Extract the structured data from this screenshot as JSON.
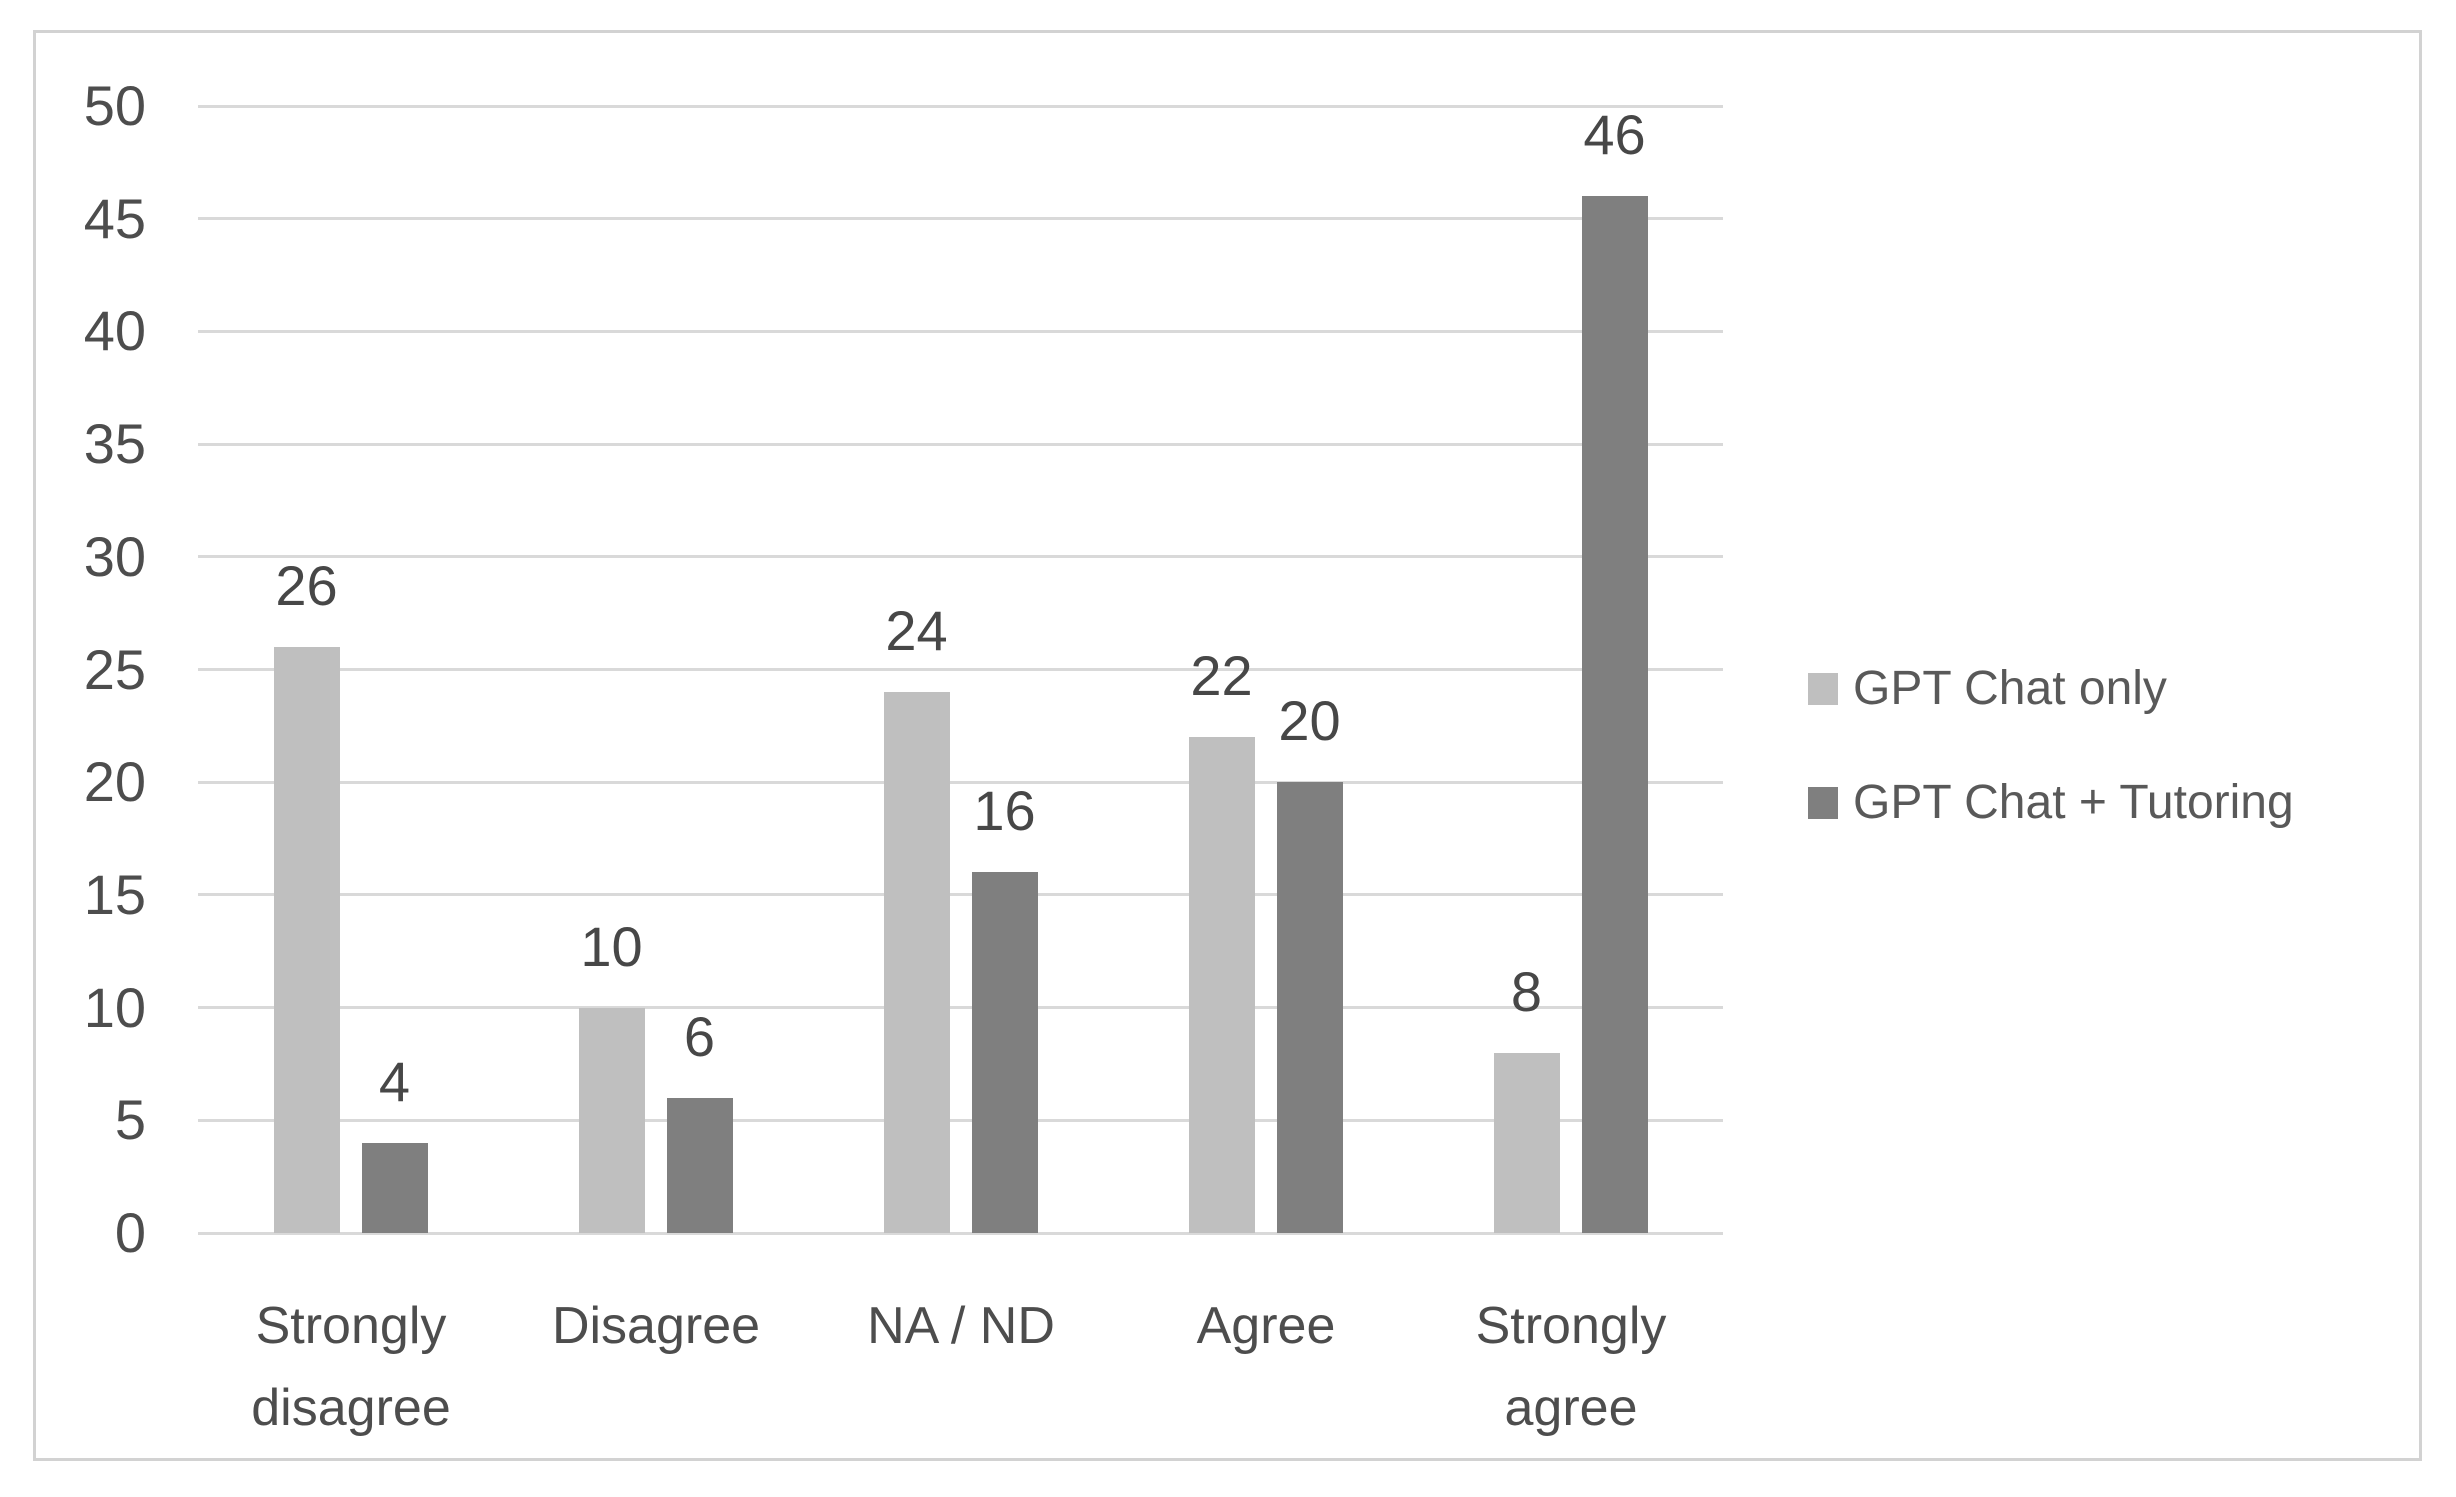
{
  "chart_data": {
    "type": "bar",
    "title": "",
    "xlabel": "",
    "ylabel": "",
    "categories": [
      "Strongly disagree",
      "Disagree",
      "NA / ND",
      "Agree",
      "Strongly agree"
    ],
    "series": [
      {
        "name": "GPT Chat only",
        "color": "#bfbfbf",
        "values": [
          26,
          10,
          24,
          22,
          8
        ]
      },
      {
        "name": "GPT Chat + Tutoring",
        "color": "#7f7f7f",
        "values": [
          4,
          6,
          16,
          20,
          46
        ]
      }
    ],
    "ylim": [
      0,
      50
    ],
    "ytick_step": 5,
    "yticks": [
      "0",
      "5",
      "10",
      "15",
      "20",
      "25",
      "30",
      "35",
      "40",
      "45",
      "50"
    ],
    "grid": true,
    "legend_position": "right",
    "data_labels_shown": true
  },
  "colors": {
    "frame_border": "#d2d2d2",
    "gridline": "#d9d9d9",
    "axis_text": "#4d4d4d",
    "data_label_text": "#474747",
    "category_text": "#4d4d4d",
    "legend_text": "#595959",
    "background": "#ffffff"
  }
}
